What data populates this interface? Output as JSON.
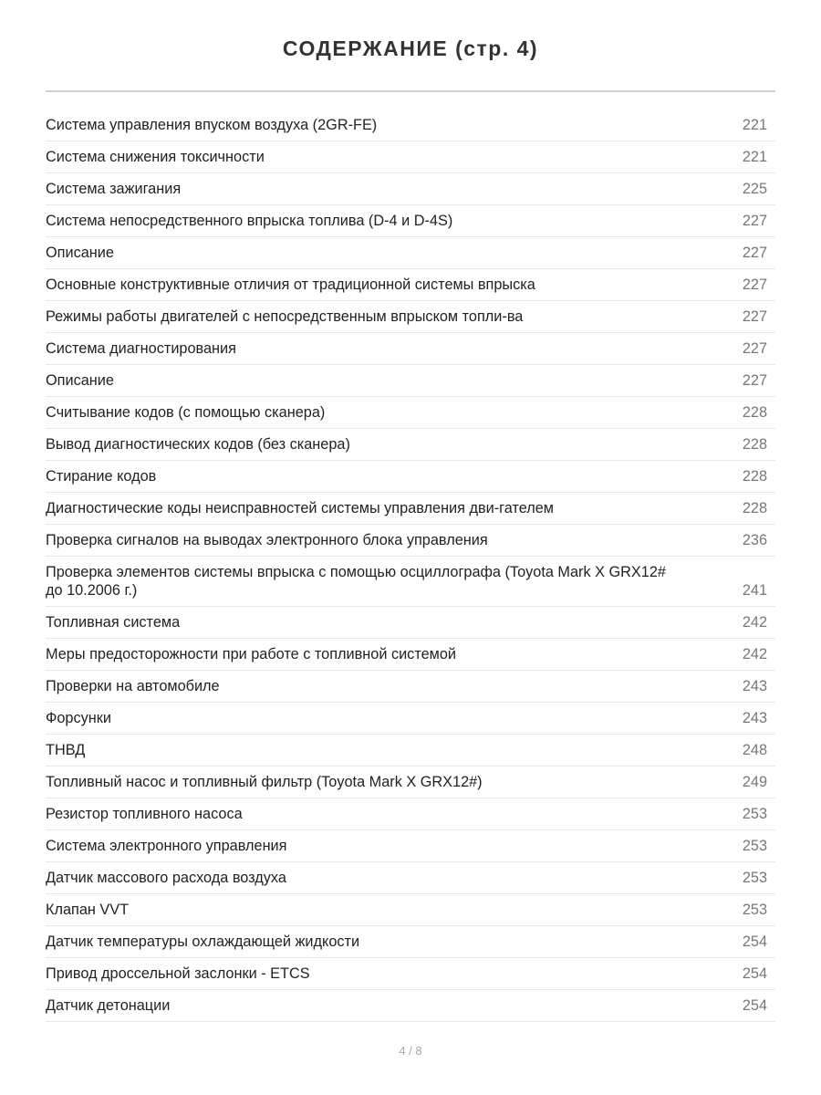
{
  "title": "СОДЕРЖАНИЕ (стр. 4)",
  "entries": [
    {
      "text": "Система управления впуском воздуха (2GR-FE)",
      "page": "221"
    },
    {
      "text": "Система снижения токсичности",
      "page": "221"
    },
    {
      "text": "Система зажигания",
      "page": "225"
    },
    {
      "text": "Система непосредственного впрыска топлива (D-4 и D-4S)",
      "page": "227"
    },
    {
      "text": "Описание",
      "page": "227"
    },
    {
      "text": "Основные конструктивные отличия от традиционной системы впрыска",
      "page": "227"
    },
    {
      "text": "Режимы работы двигателей с непосредственным впрыском топли-ва",
      "page": "227"
    },
    {
      "text": "Система диагностирования",
      "page": "227"
    },
    {
      "text": "Описание",
      "page": "227"
    },
    {
      "text": "Считывание кодов (с помощью сканера)",
      "page": "228"
    },
    {
      "text": "Вывод диагностических кодов (без сканера)",
      "page": "228"
    },
    {
      "text": "Стирание кодов",
      "page": "228"
    },
    {
      "text": "Диагностические коды неисправностей системы управления дви-гателем",
      "page": "228"
    },
    {
      "text": "Проверка сигналов на выводах электронного блока управления",
      "page": "236"
    },
    {
      "text": "Проверка элементов системы впрыска с помощью осциллографа (Toyota Mark X GRX12# до 10.2006 г.)",
      "page": "241"
    },
    {
      "text": "Топливная система",
      "page": "242"
    },
    {
      "text": "Меры предосторожности при работе с топливной системой",
      "page": "242"
    },
    {
      "text": "Проверки на автомобиле",
      "page": "243"
    },
    {
      "text": "Форсунки",
      "page": "243"
    },
    {
      "text": "ТНВД",
      "page": "248"
    },
    {
      "text": "Топливный насос и топливный фильтр (Toyota Mark X GRX12#)",
      "page": "249"
    },
    {
      "text": "Резистор топливного насоса",
      "page": "253"
    },
    {
      "text": "Система электронного управления",
      "page": "253"
    },
    {
      "text": "Датчик массового расхода воздуха",
      "page": "253"
    },
    {
      "text": "Клапан VVT",
      "page": "253"
    },
    {
      "text": "Датчик температуры охлаждающей жидкости",
      "page": "254"
    },
    {
      "text": "Привод дроссельной заслонки - ETCS",
      "page": "254"
    },
    {
      "text": "Датчик детонации",
      "page": "254"
    }
  ],
  "footer": "4 / 8"
}
